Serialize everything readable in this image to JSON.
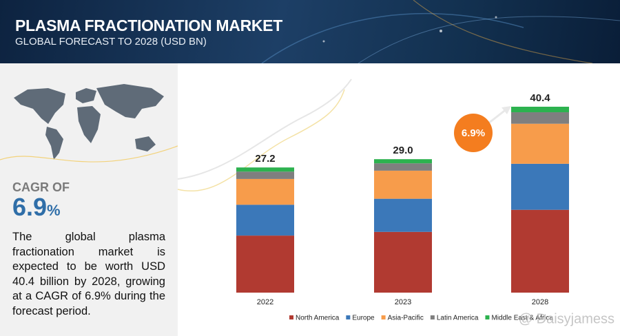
{
  "chart_data": {
    "type": "stacked_bar",
    "title": "PLASMA FRACTIONATION MARKET",
    "subtitle": "GLOBAL FORECAST TO 2028 (USD BN)",
    "categories": [
      "2022",
      "2023",
      "2028"
    ],
    "series": [
      {
        "name": "North America",
        "color": "#b13a31",
        "values": [
          12.4,
          13.2,
          18.0
        ]
      },
      {
        "name": "Europe",
        "color": "#3b78b9",
        "values": [
          6.7,
          7.2,
          10.0
        ]
      },
      {
        "name": "Asia-Pacific",
        "color": "#f79c4b",
        "values": [
          5.6,
          6.1,
          8.7
        ]
      },
      {
        "name": "Latin America",
        "color": "#7f7f7f",
        "values": [
          1.6,
          1.6,
          2.5
        ]
      },
      {
        "name": "Middle East & Africa",
        "color": "#2db24f",
        "values": [
          0.9,
          0.9,
          1.2
        ]
      }
    ],
    "totals": {
      "values": [
        27.2,
        29.0,
        40.4
      ],
      "value_labels": [
        "27.2",
        "29.0",
        "40.4"
      ]
    },
    "growth_badge": "6.9%",
    "cagr": {
      "label": "CAGR OF",
      "value": "6.9",
      "unit": "%"
    },
    "description": "The global plasma fractionation market is expected to be worth USD 40.4 billion by 2028, growing at a CAGR of 6.9% during the forecast period.",
    "watermark": "@ Daisyjamess"
  }
}
